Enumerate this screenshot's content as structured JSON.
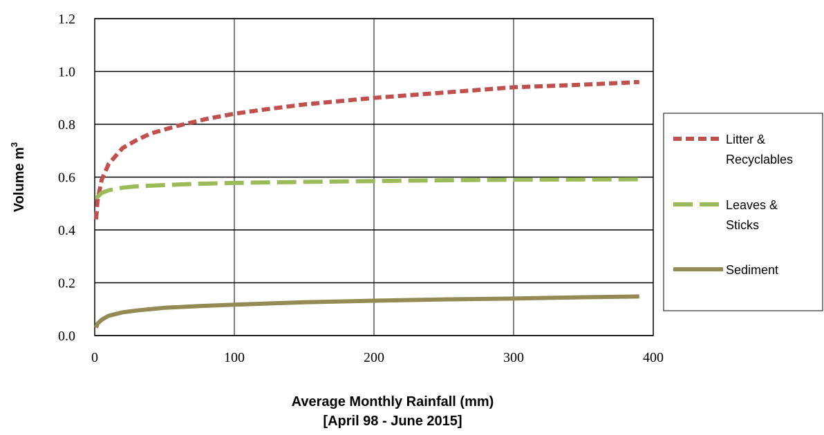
{
  "chart_data": {
    "type": "line",
    "xlabel_line1": "Average Monthly Rainfall (mm)",
    "xlabel_line2": "[April 98 - June 2015]",
    "ylabel_text": "Volume m",
    "ylabel_sup": "3",
    "xlim": [
      0,
      400
    ],
    "ylim": [
      0,
      1.2
    ],
    "x_ticks": [
      "0",
      "100",
      "200",
      "300",
      "400"
    ],
    "y_ticks": [
      "0.0",
      "0.2",
      "0.4",
      "0.6",
      "0.8",
      "1.0",
      "1.2"
    ],
    "grid": true,
    "legend_placement": "right",
    "series": [
      {
        "name_lines": [
          "Litter &",
          "Recyclables"
        ],
        "color": "#c0504d",
        "style": "dotted",
        "x": [
          1,
          2,
          5,
          10,
          20,
          30,
          40,
          50,
          60,
          80,
          100,
          120,
          150,
          200,
          250,
          300,
          350,
          390
        ],
        "y": [
          0.44,
          0.51,
          0.59,
          0.65,
          0.71,
          0.74,
          0.765,
          0.78,
          0.795,
          0.82,
          0.84,
          0.855,
          0.875,
          0.9,
          0.92,
          0.94,
          0.95,
          0.96
        ]
      },
      {
        "name_lines": [
          "Leaves &",
          "Sticks"
        ],
        "color": "#9bbb59",
        "style": "dashed",
        "x": [
          1,
          5,
          10,
          20,
          30,
          50,
          75,
          100,
          150,
          200,
          250,
          300,
          350,
          390
        ],
        "y": [
          0.52,
          0.54,
          0.55,
          0.56,
          0.565,
          0.57,
          0.575,
          0.578,
          0.582,
          0.585,
          0.588,
          0.59,
          0.591,
          0.592
        ]
      },
      {
        "name_lines": [
          "Sediment"
        ],
        "color": "#948a54",
        "style": "solid",
        "x": [
          1,
          2,
          5,
          10,
          20,
          30,
          50,
          75,
          100,
          150,
          200,
          250,
          300,
          350,
          390
        ],
        "y": [
          0.03,
          0.045,
          0.06,
          0.075,
          0.088,
          0.095,
          0.105,
          0.112,
          0.117,
          0.126,
          0.132,
          0.137,
          0.14,
          0.145,
          0.148
        ]
      }
    ]
  }
}
